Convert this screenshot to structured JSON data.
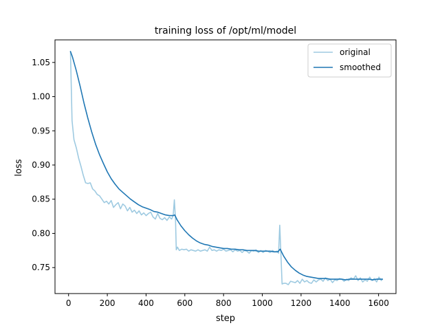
{
  "chart_data": {
    "type": "line",
    "title": "training loss of /opt/ml/model",
    "xlabel": "step",
    "ylabel": "loss",
    "xlim": [
      -70,
      1690
    ],
    "ylim": [
      0.712,
      1.083
    ],
    "xticks": [
      0,
      200,
      400,
      600,
      800,
      1000,
      1200,
      1400,
      1600
    ],
    "yticks": [
      0.75,
      0.8,
      0.85,
      0.9,
      0.95,
      1.0,
      1.05
    ],
    "ytick_labels": [
      "0.75",
      "0.80",
      "0.85",
      "0.90",
      "0.95",
      "1.00",
      "1.05"
    ],
    "grid": false,
    "legend": {
      "position": "top-right"
    },
    "series": [
      {
        "name": "original",
        "color": "#9ecae1",
        "points": [
          [
            10,
            1.066
          ],
          [
            18,
            0.965
          ],
          [
            28,
            0.937
          ],
          [
            40,
            0.925
          ],
          [
            52,
            0.91
          ],
          [
            64,
            0.898
          ],
          [
            76,
            0.885
          ],
          [
            88,
            0.874
          ],
          [
            100,
            0.873
          ],
          [
            112,
            0.874
          ],
          [
            124,
            0.865
          ],
          [
            136,
            0.862
          ],
          [
            148,
            0.857
          ],
          [
            160,
            0.855
          ],
          [
            172,
            0.85
          ],
          [
            184,
            0.845
          ],
          [
            196,
            0.847
          ],
          [
            208,
            0.843
          ],
          [
            220,
            0.848
          ],
          [
            232,
            0.838
          ],
          [
            244,
            0.842
          ],
          [
            256,
            0.845
          ],
          [
            268,
            0.836
          ],
          [
            280,
            0.843
          ],
          [
            292,
            0.84
          ],
          [
            304,
            0.833
          ],
          [
            316,
            0.838
          ],
          [
            328,
            0.831
          ],
          [
            340,
            0.834
          ],
          [
            352,
            0.829
          ],
          [
            364,
            0.833
          ],
          [
            376,
            0.827
          ],
          [
            388,
            0.83
          ],
          [
            400,
            0.826
          ],
          [
            412,
            0.829
          ],
          [
            424,
            0.831
          ],
          [
            436,
            0.824
          ],
          [
            448,
            0.821
          ],
          [
            460,
            0.829
          ],
          [
            472,
            0.822
          ],
          [
            484,
            0.82
          ],
          [
            496,
            0.823
          ],
          [
            508,
            0.819
          ],
          [
            520,
            0.824
          ],
          [
            532,
            0.821
          ],
          [
            540,
            0.826
          ],
          [
            546,
            0.849
          ],
          [
            552,
            0.82
          ],
          [
            556,
            0.776
          ],
          [
            562,
            0.78
          ],
          [
            572,
            0.775
          ],
          [
            584,
            0.777
          ],
          [
            596,
            0.776
          ],
          [
            608,
            0.777
          ],
          [
            620,
            0.774
          ],
          [
            632,
            0.776
          ],
          [
            644,
            0.775
          ],
          [
            656,
            0.774
          ],
          [
            668,
            0.776
          ],
          [
            680,
            0.774
          ],
          [
            692,
            0.775
          ],
          [
            704,
            0.776
          ],
          [
            716,
            0.774
          ],
          [
            728,
            0.78
          ],
          [
            740,
            0.775
          ],
          [
            752,
            0.776
          ],
          [
            764,
            0.774
          ],
          [
            776,
            0.776
          ],
          [
            788,
            0.775
          ],
          [
            800,
            0.777
          ],
          [
            812,
            0.774
          ],
          [
            824,
            0.775
          ],
          [
            836,
            0.776
          ],
          [
            848,
            0.773
          ],
          [
            860,
            0.776
          ],
          [
            872,
            0.774
          ],
          [
            884,
            0.775
          ],
          [
            896,
            0.772
          ],
          [
            908,
            0.775
          ],
          [
            920,
            0.774
          ],
          [
            932,
            0.771
          ],
          [
            944,
            0.775
          ],
          [
            956,
            0.774
          ],
          [
            968,
            0.776
          ],
          [
            980,
            0.772
          ],
          [
            992,
            0.775
          ],
          [
            1004,
            0.772
          ],
          [
            1016,
            0.775
          ],
          [
            1028,
            0.774
          ],
          [
            1040,
            0.772
          ],
          [
            1052,
            0.775
          ],
          [
            1064,
            0.773
          ],
          [
            1076,
            0.774
          ],
          [
            1084,
            0.771
          ],
          [
            1090,
            0.812
          ],
          [
            1096,
            0.77
          ],
          [
            1102,
            0.726
          ],
          [
            1110,
            0.727
          ],
          [
            1122,
            0.727
          ],
          [
            1134,
            0.725
          ],
          [
            1146,
            0.73
          ],
          [
            1158,
            0.729
          ],
          [
            1170,
            0.728
          ],
          [
            1182,
            0.731
          ],
          [
            1194,
            0.727
          ],
          [
            1206,
            0.733
          ],
          [
            1218,
            0.729
          ],
          [
            1230,
            0.731
          ],
          [
            1242,
            0.728
          ],
          [
            1254,
            0.727
          ],
          [
            1266,
            0.732
          ],
          [
            1278,
            0.729
          ],
          [
            1290,
            0.732
          ],
          [
            1302,
            0.733
          ],
          [
            1314,
            0.73
          ],
          [
            1326,
            0.735
          ],
          [
            1338,
            0.731
          ],
          [
            1350,
            0.733
          ],
          [
            1362,
            0.728
          ],
          [
            1374,
            0.732
          ],
          [
            1386,
            0.731
          ],
          [
            1398,
            0.734
          ],
          [
            1410,
            0.733
          ],
          [
            1422,
            0.73
          ],
          [
            1434,
            0.733
          ],
          [
            1446,
            0.731
          ],
          [
            1458,
            0.735
          ],
          [
            1470,
            0.733
          ],
          [
            1482,
            0.738
          ],
          [
            1494,
            0.731
          ],
          [
            1506,
            0.735
          ],
          [
            1518,
            0.729
          ],
          [
            1530,
            0.732
          ],
          [
            1542,
            0.73
          ],
          [
            1554,
            0.736
          ],
          [
            1566,
            0.731
          ],
          [
            1578,
            0.734
          ],
          [
            1590,
            0.729
          ],
          [
            1602,
            0.736
          ],
          [
            1614,
            0.731
          ],
          [
            1620,
            0.733
          ]
        ]
      },
      {
        "name": "smoothed",
        "color": "#1f77b4",
        "points": [
          [
            10,
            1.066
          ],
          [
            20,
            1.058
          ],
          [
            40,
            1.038
          ],
          [
            60,
            1.015
          ],
          [
            80,
            0.99
          ],
          [
            100,
            0.968
          ],
          [
            120,
            0.948
          ],
          [
            140,
            0.93
          ],
          [
            160,
            0.915
          ],
          [
            180,
            0.902
          ],
          [
            200,
            0.89
          ],
          [
            220,
            0.88
          ],
          [
            240,
            0.872
          ],
          [
            260,
            0.865
          ],
          [
            280,
            0.86
          ],
          [
            300,
            0.855
          ],
          [
            320,
            0.85
          ],
          [
            340,
            0.846
          ],
          [
            360,
            0.842
          ],
          [
            380,
            0.839
          ],
          [
            400,
            0.837
          ],
          [
            420,
            0.835
          ],
          [
            440,
            0.832
          ],
          [
            460,
            0.831
          ],
          [
            480,
            0.829
          ],
          [
            500,
            0.827
          ],
          [
            520,
            0.826
          ],
          [
            540,
            0.826
          ],
          [
            548,
            0.827
          ],
          [
            560,
            0.82
          ],
          [
            580,
            0.811
          ],
          [
            600,
            0.804
          ],
          [
            620,
            0.798
          ],
          [
            640,
            0.793
          ],
          [
            660,
            0.789
          ],
          [
            680,
            0.786
          ],
          [
            700,
            0.784
          ],
          [
            720,
            0.783
          ],
          [
            740,
            0.781
          ],
          [
            760,
            0.78
          ],
          [
            780,
            0.779
          ],
          [
            800,
            0.778
          ],
          [
            820,
            0.778
          ],
          [
            840,
            0.777
          ],
          [
            860,
            0.777
          ],
          [
            880,
            0.776
          ],
          [
            900,
            0.776
          ],
          [
            920,
            0.775
          ],
          [
            940,
            0.775
          ],
          [
            960,
            0.775
          ],
          [
            980,
            0.774
          ],
          [
            1000,
            0.774
          ],
          [
            1020,
            0.774
          ],
          [
            1040,
            0.774
          ],
          [
            1060,
            0.773
          ],
          [
            1080,
            0.773
          ],
          [
            1092,
            0.777
          ],
          [
            1110,
            0.767
          ],
          [
            1130,
            0.758
          ],
          [
            1150,
            0.751
          ],
          [
            1170,
            0.746
          ],
          [
            1190,
            0.742
          ],
          [
            1210,
            0.739
          ],
          [
            1230,
            0.737
          ],
          [
            1250,
            0.736
          ],
          [
            1270,
            0.735
          ],
          [
            1290,
            0.734
          ],
          [
            1310,
            0.734
          ],
          [
            1330,
            0.734
          ],
          [
            1350,
            0.733
          ],
          [
            1370,
            0.733
          ],
          [
            1390,
            0.733
          ],
          [
            1410,
            0.733
          ],
          [
            1430,
            0.732
          ],
          [
            1450,
            0.733
          ],
          [
            1470,
            0.733
          ],
          [
            1490,
            0.733
          ],
          [
            1510,
            0.733
          ],
          [
            1530,
            0.733
          ],
          [
            1550,
            0.733
          ],
          [
            1570,
            0.732
          ],
          [
            1590,
            0.733
          ],
          [
            1610,
            0.733
          ],
          [
            1620,
            0.733
          ]
        ]
      }
    ]
  }
}
